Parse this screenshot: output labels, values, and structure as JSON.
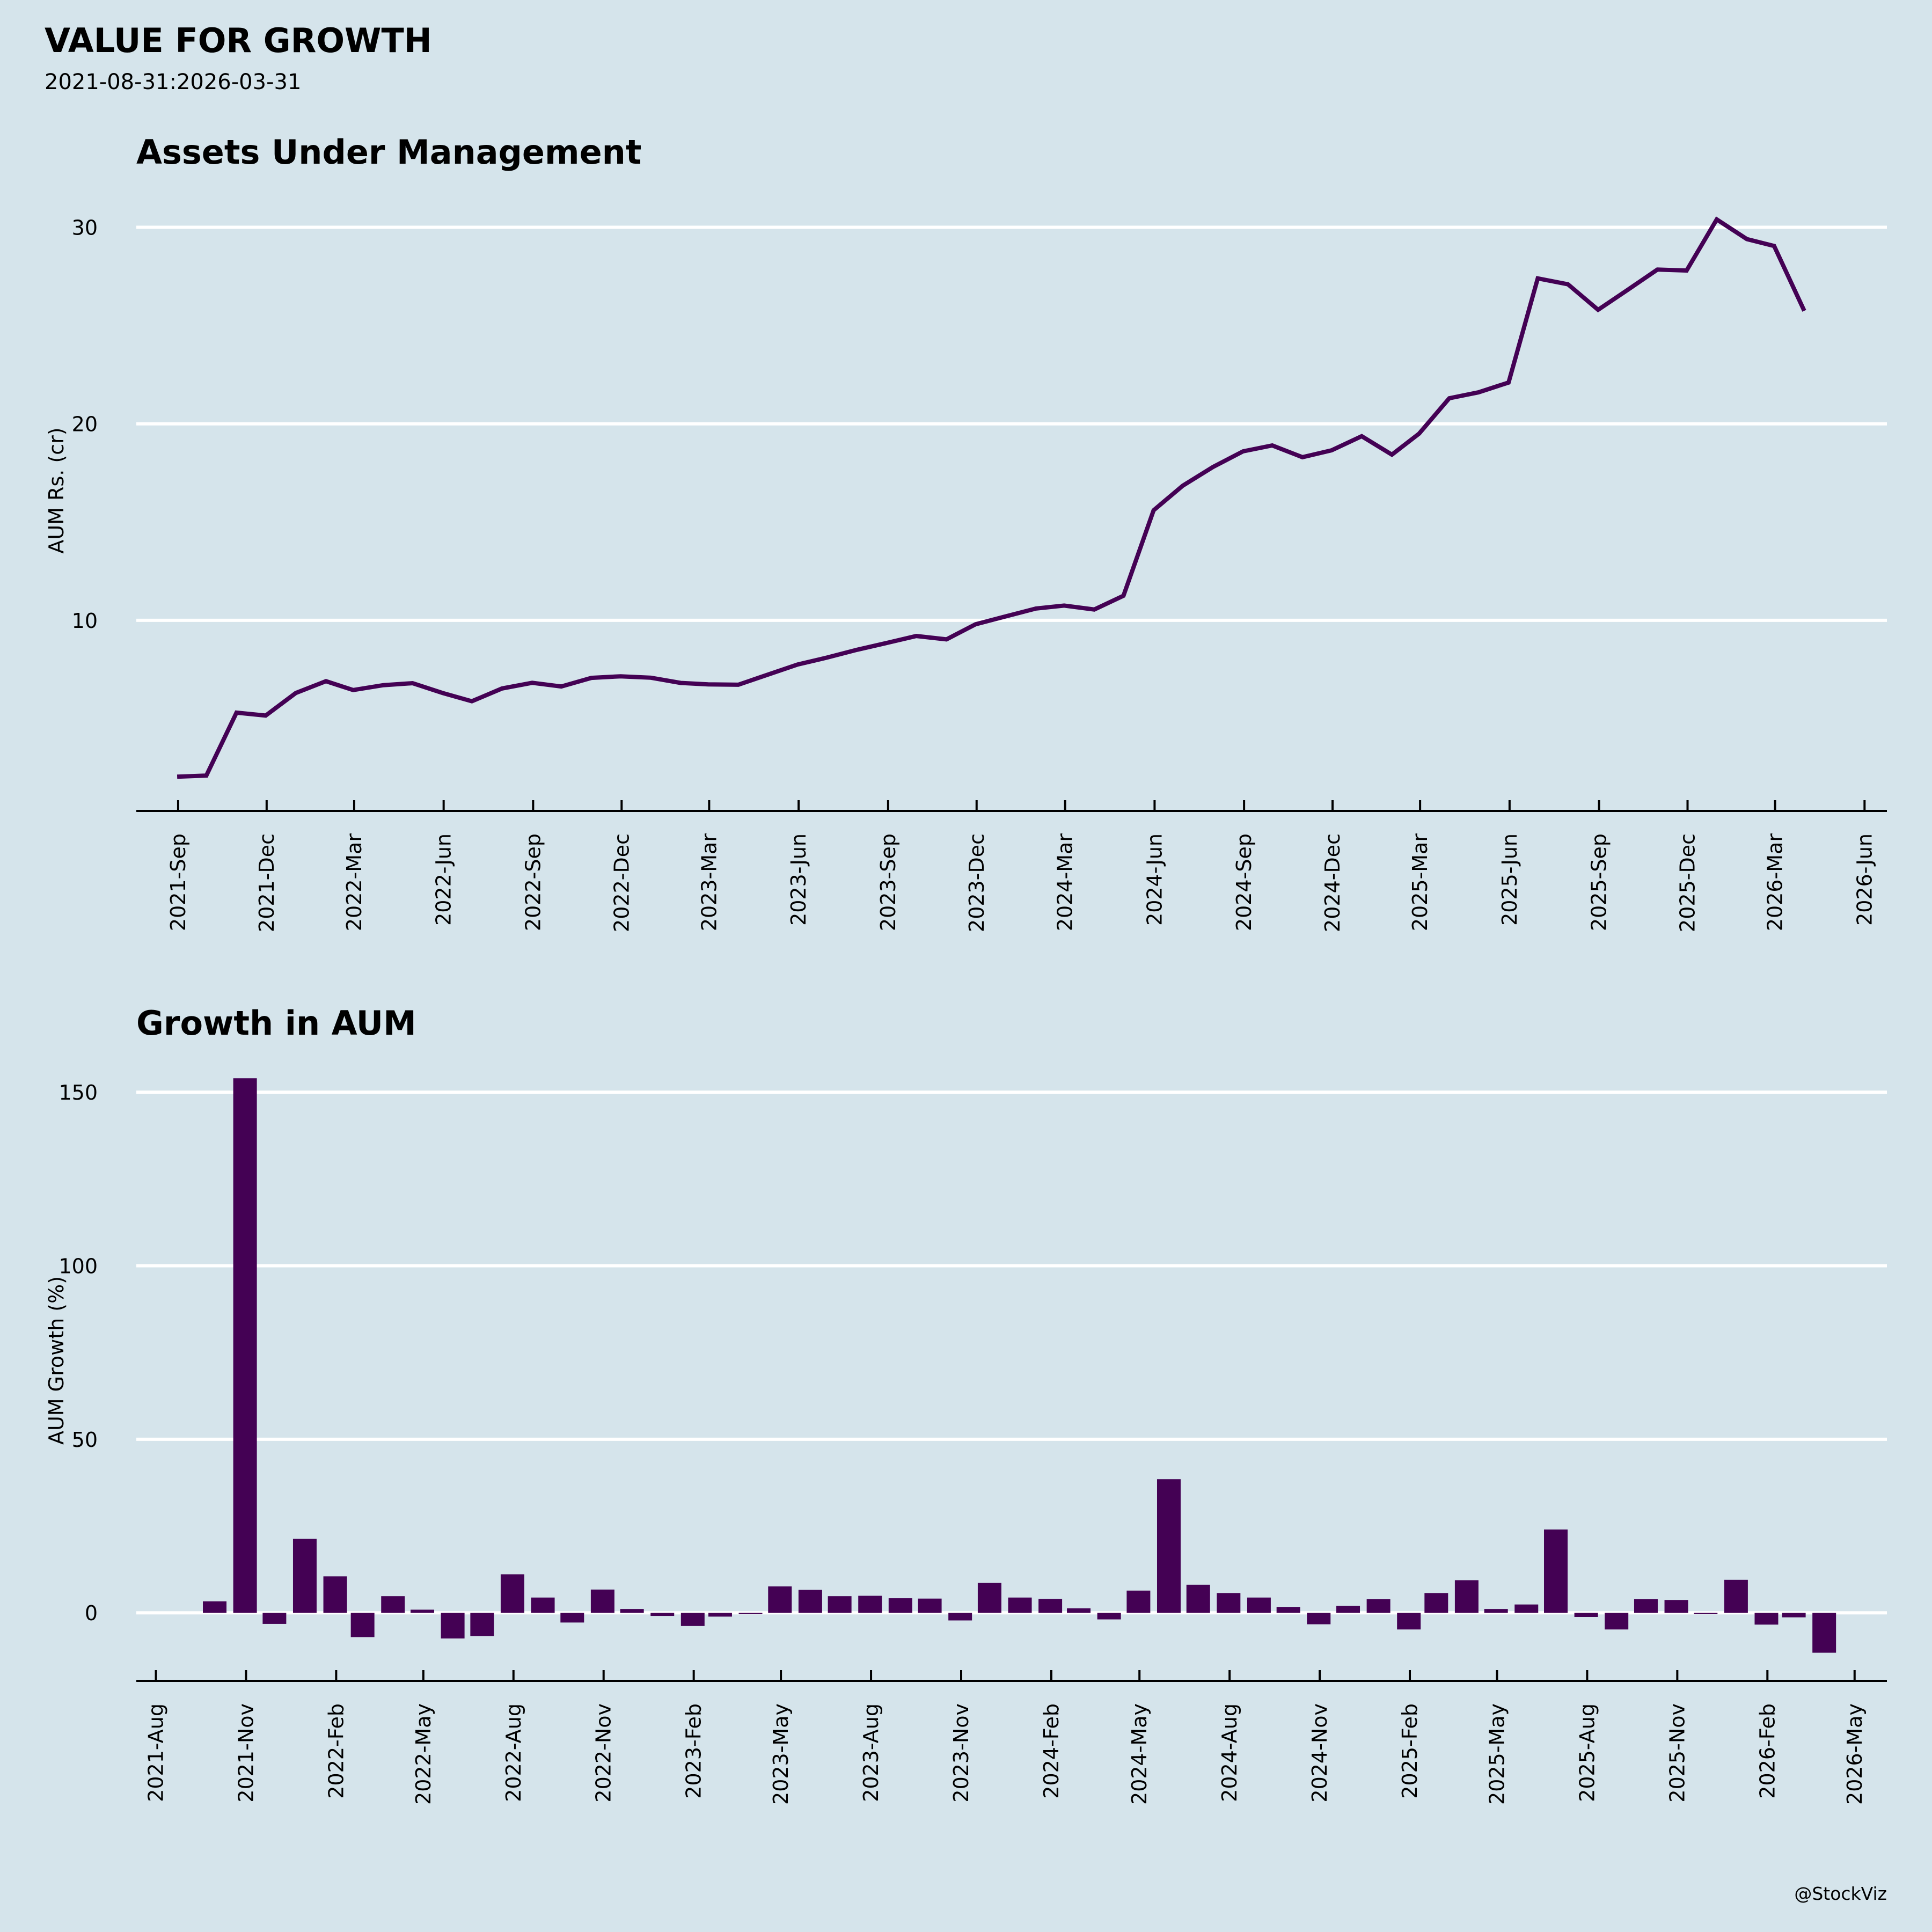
{
  "header": {
    "title": "VALUE FOR GROWTH",
    "subtitle": "2021-08-31:2026-03-31"
  },
  "footer": {
    "credit": "@StockViz"
  },
  "colors": {
    "background": "#d5e4eb",
    "series": "#440154",
    "grid": "#ffffff",
    "axis": "#000000"
  },
  "chart_data": [
    {
      "type": "line",
      "title": "Assets Under Management",
      "xlabel": "",
      "ylabel": "AUM Rs. (cr)",
      "grid": true,
      "yticks": [
        10,
        20,
        30
      ],
      "ylim": [
        0.3,
        32.2
      ],
      "xlim": [
        "2021-07-20",
        "2026-06-24"
      ],
      "xticks": [
        "2021-09-01",
        "2021-12-01",
        "2022-03-01",
        "2022-06-01",
        "2022-09-01",
        "2022-12-01",
        "2023-03-01",
        "2023-06-01",
        "2023-09-01",
        "2023-12-01",
        "2024-03-01",
        "2024-06-01",
        "2024-09-01",
        "2024-12-01",
        "2025-03-01",
        "2025-06-01",
        "2025-09-01",
        "2025-12-01",
        "2026-03-01",
        "2026-06-01"
      ],
      "xtick_labels": [
        "2021-Sep",
        "2021-Dec",
        "2022-Mar",
        "2022-Jun",
        "2022-Sep",
        "2022-Dec",
        "2023-Mar",
        "2023-Jun",
        "2023-Sep",
        "2023-Dec",
        "2024-Mar",
        "2024-Jun",
        "2024-Sep",
        "2024-Dec",
        "2025-Mar",
        "2025-Jun",
        "2025-Sep",
        "2025-Dec",
        "2026-Mar",
        "2026-Jun"
      ],
      "x": [
        "2021-08-31",
        "2021-09-30",
        "2021-10-31",
        "2021-11-30",
        "2021-12-31",
        "2022-01-31",
        "2022-02-28",
        "2022-03-31",
        "2022-04-30",
        "2022-05-31",
        "2022-06-30",
        "2022-07-31",
        "2022-08-31",
        "2022-09-30",
        "2022-10-31",
        "2022-11-30",
        "2022-12-31",
        "2023-01-31",
        "2023-02-28",
        "2023-03-31",
        "2023-04-30",
        "2023-05-31",
        "2023-06-30",
        "2023-07-31",
        "2023-08-31",
        "2023-09-30",
        "2023-10-31",
        "2023-11-30",
        "2023-12-31",
        "2024-01-31",
        "2024-02-29",
        "2024-03-31",
        "2024-04-30",
        "2024-05-31",
        "2024-06-30",
        "2024-07-31",
        "2024-08-31",
        "2024-09-30",
        "2024-10-31",
        "2024-11-30",
        "2024-12-31",
        "2025-01-31",
        "2025-02-28",
        "2025-03-31",
        "2025-04-30",
        "2025-05-31",
        "2025-06-30",
        "2025-07-31",
        "2025-08-31",
        "2025-09-30",
        "2025-10-31",
        "2025-11-30",
        "2025-12-31",
        "2026-01-31",
        "2026-02-28",
        "2026-03-31"
      ],
      "series": [
        {
          "name": "AUM",
          "values": [
            2.04,
            2.1,
            5.3,
            5.15,
            6.3,
            6.9,
            6.45,
            6.7,
            6.8,
            6.3,
            5.88,
            6.53,
            6.82,
            6.63,
            7.07,
            7.15,
            7.08,
            6.81,
            6.74,
            6.72,
            7.23,
            7.75,
            8.1,
            8.5,
            8.85,
            9.2,
            9.03,
            9.8,
            10.2,
            10.6,
            10.75,
            10.55,
            11.25,
            15.6,
            16.85,
            17.8,
            18.6,
            18.9,
            18.3,
            18.65,
            19.37,
            18.43,
            19.5,
            21.3,
            21.6,
            22.1,
            27.4,
            27.1,
            25.8,
            26.8,
            27.85,
            27.8,
            30.4,
            29.4,
            29.05,
            25.75
          ]
        }
      ]
    },
    {
      "type": "bar",
      "title": "Growth in AUM",
      "xlabel": "",
      "ylabel": "AUM Growth (%)",
      "grid": true,
      "yticks": [
        0,
        50,
        100,
        150
      ],
      "ylim": [
        -19.6,
        163
      ],
      "xlim": [
        "2021-07-12",
        "2026-06-03"
      ],
      "xticks": [
        "2021-08-01",
        "2021-11-01",
        "2022-02-01",
        "2022-05-01",
        "2022-08-01",
        "2022-11-01",
        "2023-02-01",
        "2023-05-01",
        "2023-08-01",
        "2023-11-01",
        "2024-02-01",
        "2024-05-01",
        "2024-08-01",
        "2024-11-01",
        "2025-02-01",
        "2025-05-01",
        "2025-08-01",
        "2025-11-01",
        "2026-02-01",
        "2026-05-01"
      ],
      "xtick_labels": [
        "2021-Aug",
        "2021-Nov",
        "2022-Feb",
        "2022-May",
        "2022-Aug",
        "2022-Nov",
        "2023-Feb",
        "2023-May",
        "2023-Aug",
        "2023-Nov",
        "2024-Feb",
        "2024-May",
        "2024-Aug",
        "2024-Nov",
        "2025-Feb",
        "2025-May",
        "2025-Aug",
        "2025-Nov",
        "2026-Feb",
        "2026-May"
      ],
      "x": [
        "2021-09-30",
        "2021-10-31",
        "2021-11-30",
        "2021-12-31",
        "2022-01-31",
        "2022-02-28",
        "2022-03-31",
        "2022-04-30",
        "2022-05-31",
        "2022-06-30",
        "2022-07-31",
        "2022-08-31",
        "2022-09-30",
        "2022-10-31",
        "2022-11-30",
        "2022-12-31",
        "2023-01-31",
        "2023-02-28",
        "2023-03-31",
        "2023-04-30",
        "2023-05-31",
        "2023-06-30",
        "2023-07-31",
        "2023-08-31",
        "2023-09-30",
        "2023-10-31",
        "2023-11-30",
        "2023-12-31",
        "2024-01-31",
        "2024-02-29",
        "2024-03-31",
        "2024-04-30",
        "2024-05-31",
        "2024-06-30",
        "2024-07-31",
        "2024-08-31",
        "2024-09-30",
        "2024-10-31",
        "2024-11-30",
        "2024-12-31",
        "2025-01-31",
        "2025-02-28",
        "2025-03-31",
        "2025-04-30",
        "2025-05-31",
        "2025-06-30",
        "2025-07-31",
        "2025-08-31",
        "2025-09-30",
        "2025-10-31",
        "2025-11-30",
        "2025-12-31",
        "2026-01-31",
        "2026-02-28",
        "2026-03-31"
      ],
      "series": [
        {
          "name": "Growth %",
          "values": [
            3.3,
            154,
            -3.2,
            21.3,
            10.5,
            -7.0,
            4.8,
            0.9,
            -7.4,
            -6.7,
            11.1,
            4.4,
            -2.8,
            6.7,
            1.1,
            -0.9,
            -3.8,
            -1.1,
            -0.3,
            7.6,
            6.6,
            4.8,
            4.9,
            4.2,
            4.1,
            -2.2,
            8.6,
            4.4,
            4.0,
            1.3,
            -1.9,
            6.4,
            38.5,
            8.1,
            5.7,
            4.4,
            1.7,
            -3.3,
            2.0,
            3.9,
            -4.8,
            5.7,
            9.4,
            1.1,
            2.4,
            24.0,
            -1.2,
            -4.8,
            3.9,
            3.7,
            -0.3,
            9.5,
            -3.4,
            -1.3,
            -11.5
          ]
        }
      ]
    }
  ]
}
